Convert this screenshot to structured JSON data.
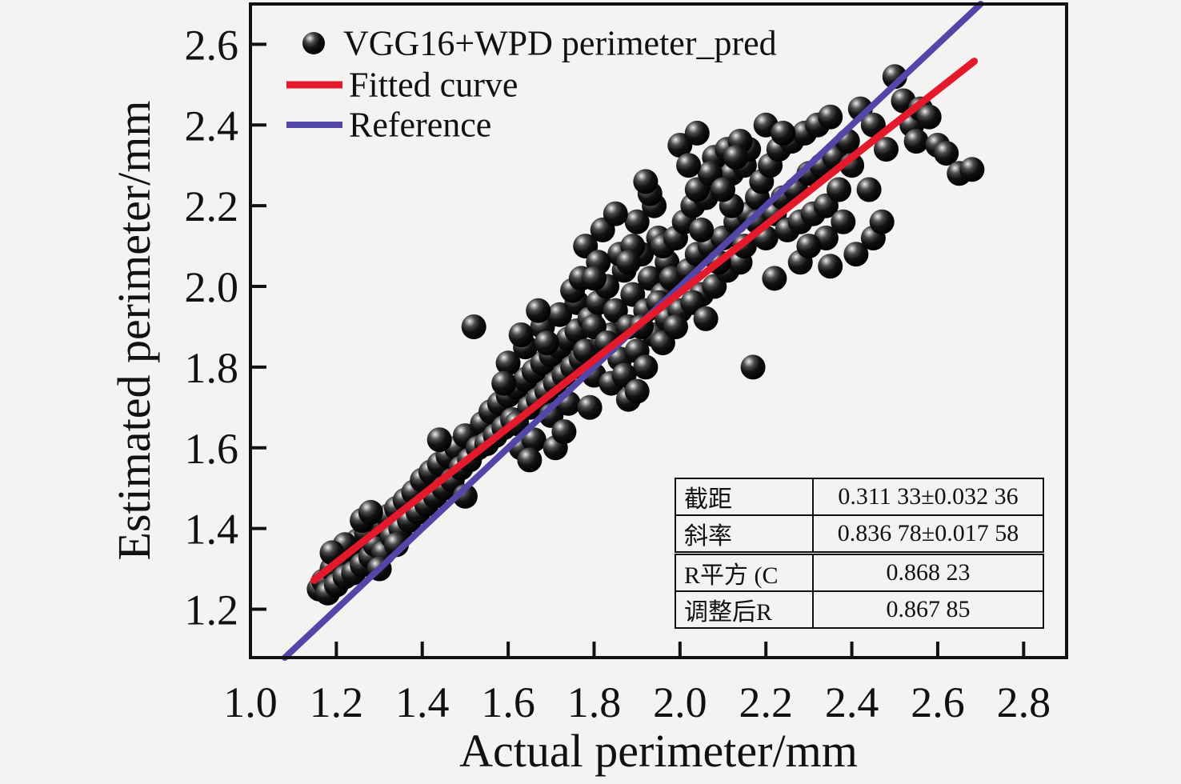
{
  "figure": {
    "background": "#f4f3f1",
    "frame_color": "#111111",
    "marker_color": "#000000"
  },
  "chart_data": {
    "type": "scatter",
    "title": "",
    "xlabel": "Actual perimeter/mm",
    "ylabel": "Estimated perimeter/mm",
    "xlim": [
      1.0,
      2.9
    ],
    "ylim": [
      1.08,
      2.7
    ],
    "x_ticks": [
      1.0,
      1.2,
      1.4,
      1.6,
      1.8,
      2.0,
      2.2,
      2.4,
      2.6,
      2.8
    ],
    "y_ticks": [
      1.2,
      1.4,
      1.6,
      1.8,
      2.0,
      2.2,
      2.4,
      2.6
    ],
    "grid": false,
    "legend_position": "top-left",
    "series": [
      {
        "name": "VGG16+WPD perimeter_pred",
        "type": "scatter",
        "marker": "glossy-sphere",
        "color": "#000000",
        "points": [
          [
            1.16,
            1.25
          ],
          [
            1.17,
            1.27
          ],
          [
            1.18,
            1.24
          ],
          [
            1.19,
            1.3
          ],
          [
            1.2,
            1.26
          ],
          [
            1.21,
            1.32
          ],
          [
            1.22,
            1.28
          ],
          [
            1.23,
            1.35
          ],
          [
            1.24,
            1.29
          ],
          [
            1.25,
            1.37
          ],
          [
            1.26,
            1.31
          ],
          [
            1.27,
            1.39
          ],
          [
            1.28,
            1.33
          ],
          [
            1.29,
            1.36
          ],
          [
            1.3,
            1.41
          ],
          [
            1.31,
            1.34
          ],
          [
            1.32,
            1.43
          ],
          [
            1.33,
            1.38
          ],
          [
            1.34,
            1.45
          ],
          [
            1.35,
            1.4
          ],
          [
            1.36,
            1.47
          ],
          [
            1.37,
            1.42
          ],
          [
            1.22,
            1.36
          ],
          [
            1.26,
            1.42
          ],
          [
            1.3,
            1.3
          ],
          [
            1.34,
            1.36
          ],
          [
            1.19,
            1.34
          ],
          [
            1.28,
            1.44
          ],
          [
            1.38,
            1.49
          ],
          [
            1.39,
            1.44
          ],
          [
            1.4,
            1.52
          ],
          [
            1.41,
            1.46
          ],
          [
            1.42,
            1.54
          ],
          [
            1.43,
            1.48
          ],
          [
            1.44,
            1.56
          ],
          [
            1.45,
            1.5
          ],
          [
            1.46,
            1.58
          ],
          [
            1.47,
            1.52
          ],
          [
            1.48,
            1.6
          ],
          [
            1.49,
            1.55
          ],
          [
            1.5,
            1.63
          ],
          [
            1.51,
            1.57
          ],
          [
            1.52,
            1.9
          ],
          [
            1.53,
            1.6
          ],
          [
            1.54,
            1.66
          ],
          [
            1.55,
            1.61
          ],
          [
            1.56,
            1.69
          ],
          [
            1.57,
            1.63
          ],
          [
            1.44,
            1.62
          ],
          [
            1.5,
            1.48
          ],
          [
            1.58,
            1.71
          ],
          [
            1.59,
            1.65
          ],
          [
            1.6,
            1.73
          ],
          [
            1.61,
            1.67
          ],
          [
            1.62,
            1.75
          ],
          [
            1.63,
            1.6
          ],
          [
            1.64,
            1.77
          ],
          [
            1.65,
            1.7
          ],
          [
            1.66,
            1.79
          ],
          [
            1.67,
            1.72
          ],
          [
            1.68,
            1.81
          ],
          [
            1.69,
            1.74
          ],
          [
            1.7,
            1.83
          ],
          [
            1.71,
            1.76
          ],
          [
            1.72,
            1.85
          ],
          [
            1.73,
            1.78
          ],
          [
            1.74,
            1.87
          ],
          [
            1.75,
            1.8
          ],
          [
            1.76,
            1.89
          ],
          [
            1.77,
            1.82
          ],
          [
            1.6,
            1.81
          ],
          [
            1.62,
            1.66
          ],
          [
            1.64,
            1.85
          ],
          [
            1.66,
            1.62
          ],
          [
            1.68,
            1.9
          ],
          [
            1.7,
            1.68
          ],
          [
            1.72,
            1.93
          ],
          [
            1.74,
            1.71
          ],
          [
            1.76,
            1.96
          ],
          [
            1.63,
            1.88
          ],
          [
            1.67,
            1.94
          ],
          [
            1.71,
            1.6
          ],
          [
            1.75,
            1.99
          ],
          [
            1.59,
            1.76
          ],
          [
            1.65,
            1.57
          ],
          [
            1.69,
            1.86
          ],
          [
            1.73,
            1.64
          ],
          [
            1.77,
            2.02
          ],
          [
            1.78,
            1.84
          ],
          [
            1.79,
            1.92
          ],
          [
            1.8,
            1.78
          ],
          [
            1.81,
            1.96
          ],
          [
            1.82,
            1.86
          ],
          [
            1.83,
            2.0
          ],
          [
            1.84,
            1.88
          ],
          [
            1.85,
            1.94
          ],
          [
            1.86,
            1.82
          ],
          [
            1.87,
            2.04
          ],
          [
            1.88,
            1.9
          ],
          [
            1.89,
            1.98
          ],
          [
            1.9,
            1.84
          ],
          [
            1.91,
            2.08
          ],
          [
            1.92,
            1.94
          ],
          [
            1.93,
            2.02
          ],
          [
            1.94,
            1.88
          ],
          [
            1.95,
            2.12
          ],
          [
            1.96,
            1.98
          ],
          [
            1.97,
            2.06
          ],
          [
            1.78,
            2.1
          ],
          [
            1.8,
            1.9
          ],
          [
            1.82,
            2.14
          ],
          [
            1.84,
            1.76
          ],
          [
            1.86,
            2.08
          ],
          [
            1.88,
            1.72
          ],
          [
            1.9,
            2.16
          ],
          [
            1.92,
            1.8
          ],
          [
            1.94,
            2.2
          ],
          [
            1.96,
            1.86
          ],
          [
            1.79,
            1.7
          ],
          [
            1.83,
            1.86
          ],
          [
            1.87,
            1.78
          ],
          [
            1.91,
            1.9
          ],
          [
            1.95,
            1.96
          ],
          [
            1.81,
            2.06
          ],
          [
            1.85,
            2.18
          ],
          [
            1.89,
            2.1
          ],
          [
            1.93,
            2.23
          ],
          [
            1.97,
            1.92
          ],
          [
            1.8,
            2.02
          ],
          [
            1.88,
            2.06
          ],
          [
            1.92,
            2.26
          ],
          [
            1.96,
            2.1
          ],
          [
            1.9,
            1.74
          ],
          [
            1.98,
            2.02
          ],
          [
            1.99,
            2.12
          ],
          [
            2.0,
            1.94
          ],
          [
            2.01,
            2.16
          ],
          [
            2.02,
            2.04
          ],
          [
            2.03,
            2.2
          ],
          [
            2.04,
            2.08
          ],
          [
            2.05,
            1.98
          ],
          [
            2.06,
            2.22
          ],
          [
            2.07,
            2.1
          ],
          [
            2.08,
            2.0
          ],
          [
            2.09,
            2.26
          ],
          [
            2.1,
            2.12
          ],
          [
            2.11,
            2.04
          ],
          [
            2.12,
            2.28
          ],
          [
            2.13,
            2.16
          ],
          [
            2.14,
            2.06
          ],
          [
            2.15,
            2.3
          ],
          [
            2.16,
            2.18
          ],
          [
            2.17,
            1.8
          ],
          [
            2.0,
            2.35
          ],
          [
            2.04,
            2.24
          ],
          [
            2.08,
            2.32
          ],
          [
            2.12,
            2.2
          ],
          [
            2.16,
            2.34
          ],
          [
            1.99,
            1.9
          ],
          [
            2.03,
            1.96
          ],
          [
            2.07,
            2.28
          ],
          [
            2.11,
            2.34
          ],
          [
            2.15,
            2.1
          ],
          [
            2.02,
            2.3
          ],
          [
            2.06,
            1.92
          ],
          [
            2.1,
            2.24
          ],
          [
            2.14,
            2.36
          ],
          [
            2.18,
            2.22
          ],
          [
            2.05,
            2.14
          ],
          [
            2.09,
            2.06
          ],
          [
            2.13,
            2.32
          ],
          [
            2.04,
            2.38
          ],
          [
            2.18,
            2.16
          ],
          [
            2.19,
            2.26
          ],
          [
            2.2,
            2.12
          ],
          [
            2.21,
            2.3
          ],
          [
            2.22,
            2.18
          ],
          [
            2.23,
            2.34
          ],
          [
            2.24,
            2.22
          ],
          [
            2.25,
            2.14
          ],
          [
            2.26,
            2.36
          ],
          [
            2.27,
            2.24
          ],
          [
            2.28,
            2.16
          ],
          [
            2.29,
            2.38
          ],
          [
            2.3,
            2.28
          ],
          [
            2.31,
            2.18
          ],
          [
            2.32,
            2.4
          ],
          [
            2.33,
            2.3
          ],
          [
            2.34,
            2.2
          ],
          [
            2.35,
            2.42
          ],
          [
            2.36,
            2.32
          ],
          [
            2.37,
            2.24
          ],
          [
            2.38,
            2.16
          ],
          [
            2.39,
            2.36
          ],
          [
            2.22,
            2.02
          ],
          [
            2.28,
            2.06
          ],
          [
            2.34,
            2.12
          ],
          [
            2.2,
            2.4
          ],
          [
            2.24,
            2.38
          ],
          [
            2.3,
            2.1
          ],
          [
            2.35,
            2.05
          ],
          [
            2.4,
            2.3
          ],
          [
            2.41,
            2.08
          ],
          [
            2.42,
            2.44
          ],
          [
            2.44,
            2.24
          ],
          [
            2.45,
            2.12
          ],
          [
            2.45,
            2.4
          ],
          [
            2.47,
            2.16
          ],
          [
            2.48,
            2.34
          ],
          [
            2.5,
            2.52
          ],
          [
            2.52,
            2.46
          ],
          [
            2.54,
            2.4
          ],
          [
            2.55,
            2.36
          ],
          [
            2.56,
            2.44
          ],
          [
            2.58,
            2.42
          ],
          [
            2.6,
            2.35
          ],
          [
            2.62,
            2.33
          ],
          [
            2.65,
            2.28
          ],
          [
            2.68,
            2.29
          ]
        ]
      },
      {
        "name": "Fitted curve",
        "type": "line",
        "color": "#e4192c",
        "intercept": 0.31133,
        "slope": 0.83678,
        "x_range": [
          1.148,
          2.685
        ]
      },
      {
        "name": "Reference",
        "type": "line",
        "color": "#5246a8",
        "intercept": 0,
        "slope": 1,
        "x_range": [
          1.08,
          2.7
        ]
      }
    ]
  },
  "stats_table": {
    "rows": [
      {
        "label": "截距",
        "value": "0.311 33±0.032 36"
      },
      {
        "label": "斜率",
        "value": "0.836 78±0.017 58"
      },
      {
        "label": "R平方 (C",
        "value": "0.868 23"
      },
      {
        "label": "调整后R",
        "value": "0.867 85"
      }
    ]
  }
}
